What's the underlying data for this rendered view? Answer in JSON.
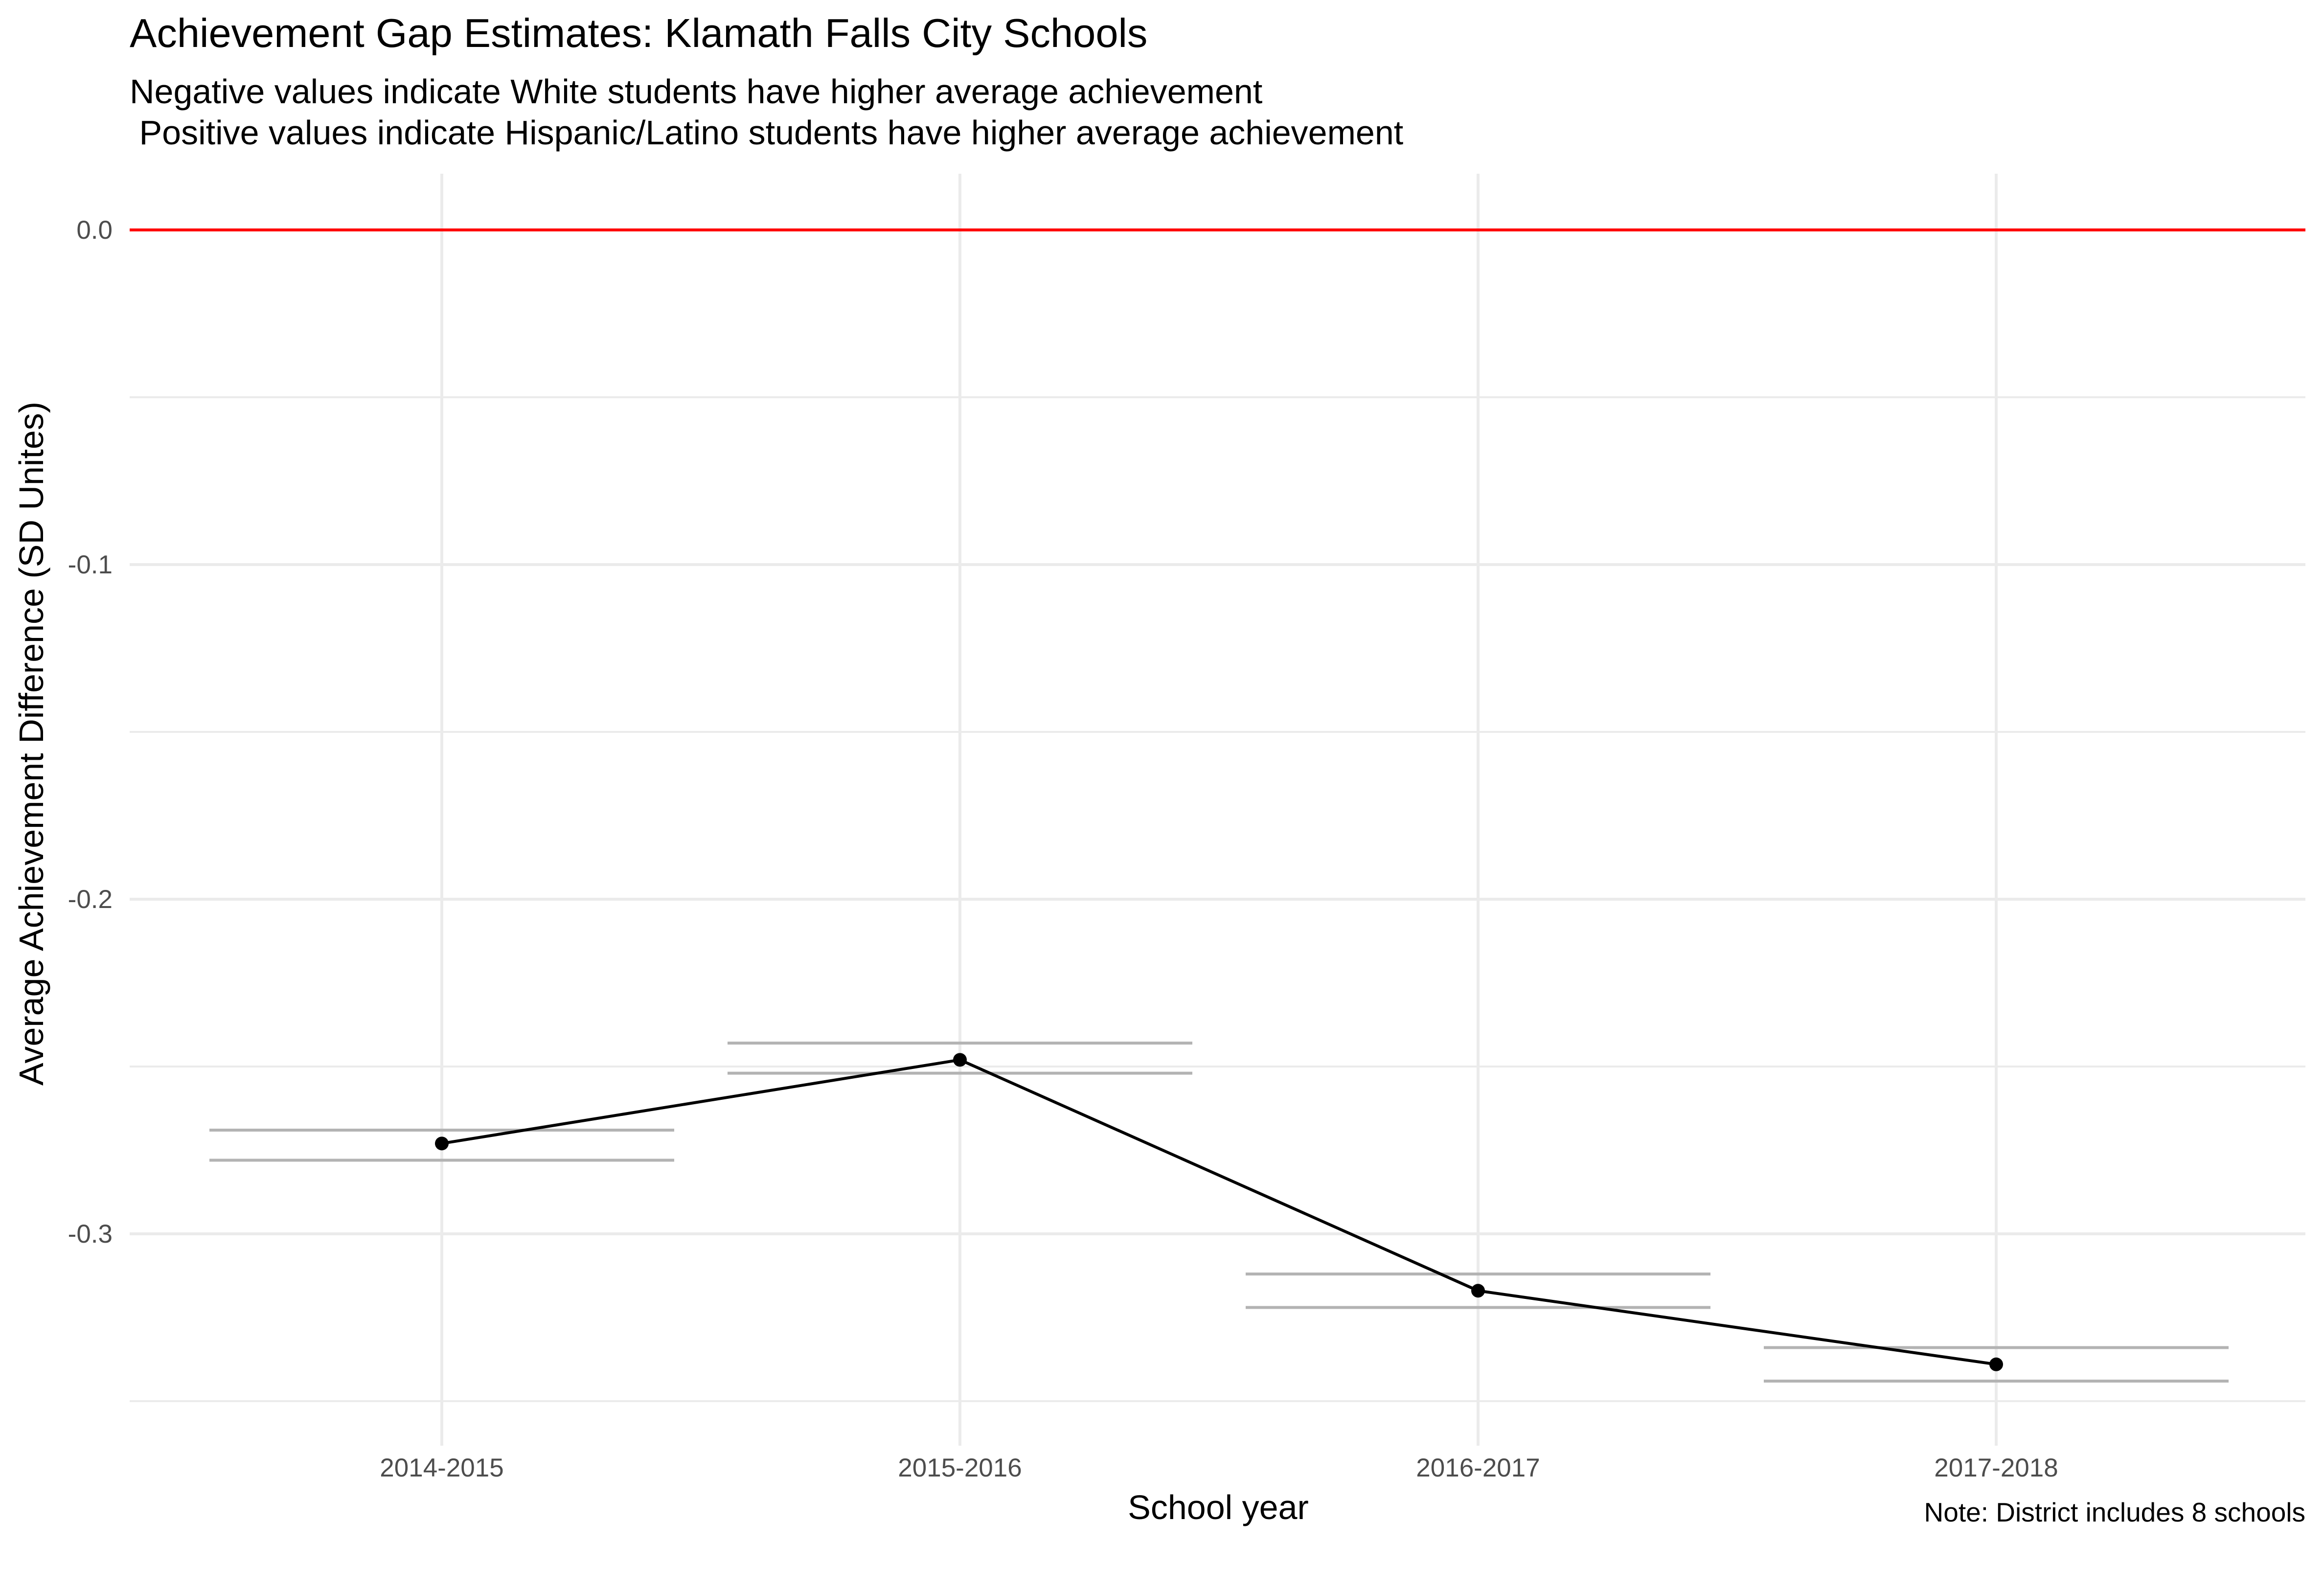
{
  "chart_data": {
    "type": "line",
    "title": "Achievement Gap Estimates: Klamath Falls City Schools",
    "subtitle_lines": [
      "Negative values indicate White students have higher average achievement",
      " Positive values indicate Hispanic/Latino students have higher average achievement"
    ],
    "xlabel": "School year",
    "ylabel": "Average Achievement Difference (SD Unites)",
    "caption": "Note: District includes 8 schools",
    "categories": [
      "2014-2015",
      "2015-2016",
      "2016-2017",
      "2017-2018"
    ],
    "series": [
      {
        "values": [
          -0.273,
          -0.248,
          -0.317,
          -0.339
        ],
        "ci_upper": [
          -0.269,
          -0.243,
          -0.312,
          -0.334
        ],
        "ci_lower": [
          -0.278,
          -0.252,
          -0.322,
          -0.344
        ]
      }
    ],
    "ylim": [
      -0.35,
      0.017
    ],
    "yticks": [
      0.0,
      -0.1,
      -0.2,
      -0.3
    ],
    "ytick_labels": [
      "0.0",
      "-0.1",
      "-0.2",
      "-0.3"
    ],
    "reference_line": {
      "y": 0.0,
      "color": "#ff0000"
    },
    "grid": true,
    "colors": {
      "line": "#000000",
      "errorbar": "#b3b3b3",
      "grid": "#ebebeb",
      "reference": "#ff0000"
    }
  }
}
